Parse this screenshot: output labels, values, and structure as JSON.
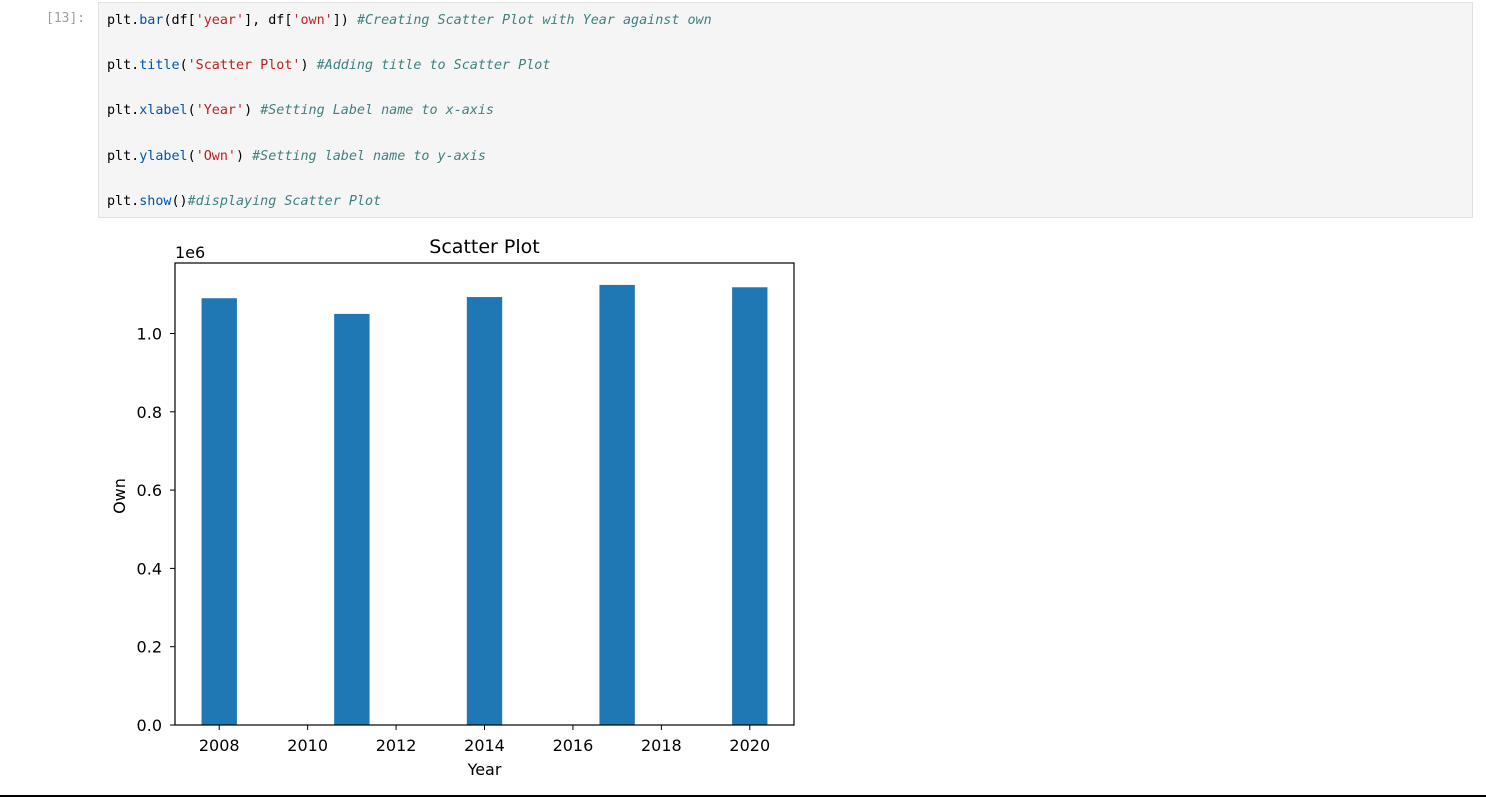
{
  "cell": {
    "prompt": "[13]:",
    "lines": [
      [
        {
          "t": "plt.",
          "k": "pun"
        },
        {
          "t": "bar",
          "k": "fn"
        },
        {
          "t": "(df[",
          "k": "pun"
        },
        {
          "t": "'year'",
          "k": "str"
        },
        {
          "t": "], df[",
          "k": "pun"
        },
        {
          "t": "'own'",
          "k": "str"
        },
        {
          "t": "]) ",
          "k": "pun"
        },
        {
          "t": "#Creating Scatter Plot with Year against own",
          "k": "cmt"
        }
      ],
      [
        {
          "t": "plt.",
          "k": "pun"
        },
        {
          "t": "title",
          "k": "fn"
        },
        {
          "t": "(",
          "k": "pun"
        },
        {
          "t": "'Scatter Plot'",
          "k": "str"
        },
        {
          "t": ") ",
          "k": "pun"
        },
        {
          "t": "#Adding title to Scatter Plot",
          "k": "cmt"
        }
      ],
      [
        {
          "t": "plt.",
          "k": "pun"
        },
        {
          "t": "xlabel",
          "k": "fn"
        },
        {
          "t": "(",
          "k": "pun"
        },
        {
          "t": "'Year'",
          "k": "str"
        },
        {
          "t": ") ",
          "k": "pun"
        },
        {
          "t": "#Setting Label name to x-axis",
          "k": "cmt"
        }
      ],
      [
        {
          "t": "plt.",
          "k": "pun"
        },
        {
          "t": "ylabel",
          "k": "fn"
        },
        {
          "t": "(",
          "k": "pun"
        },
        {
          "t": "'Own'",
          "k": "str"
        },
        {
          "t": ") ",
          "k": "pun"
        },
        {
          "t": "#Setting label name to y-axis",
          "k": "cmt"
        }
      ],
      [
        {
          "t": "plt.",
          "k": "pun"
        },
        {
          "t": "show",
          "k": "fn"
        },
        {
          "t": "()",
          "k": "pun"
        },
        {
          "t": "#displaying Scatter Plot",
          "k": "cmt"
        }
      ]
    ]
  },
  "colors": {
    "bar": "#1f77b4",
    "cell_bg": "#f5f5f5",
    "code_function": "#0055aa",
    "code_string": "#ba2121",
    "code_comment": "#408080"
  },
  "chart_data": {
    "type": "bar",
    "title": "Scatter Plot",
    "xlabel": "Year",
    "ylabel": "Own",
    "y_offset_label": "1e6",
    "x": [
      2008,
      2011,
      2014,
      2017,
      2020
    ],
    "values": [
      1090000,
      1050000,
      1093000,
      1124000,
      1118000
    ],
    "bar_width": 0.8,
    "xlim": [
      2007,
      2021
    ],
    "ylim": [
      0,
      1180000
    ],
    "xticks": [
      2008,
      2010,
      2012,
      2014,
      2016,
      2018,
      2020
    ],
    "yticks": [
      0,
      200000,
      400000,
      600000,
      800000,
      1000000
    ],
    "ytick_labels": [
      "0.0",
      "0.2",
      "0.4",
      "0.6",
      "0.8",
      "1.0"
    ],
    "grid": false,
    "legend": "none"
  }
}
